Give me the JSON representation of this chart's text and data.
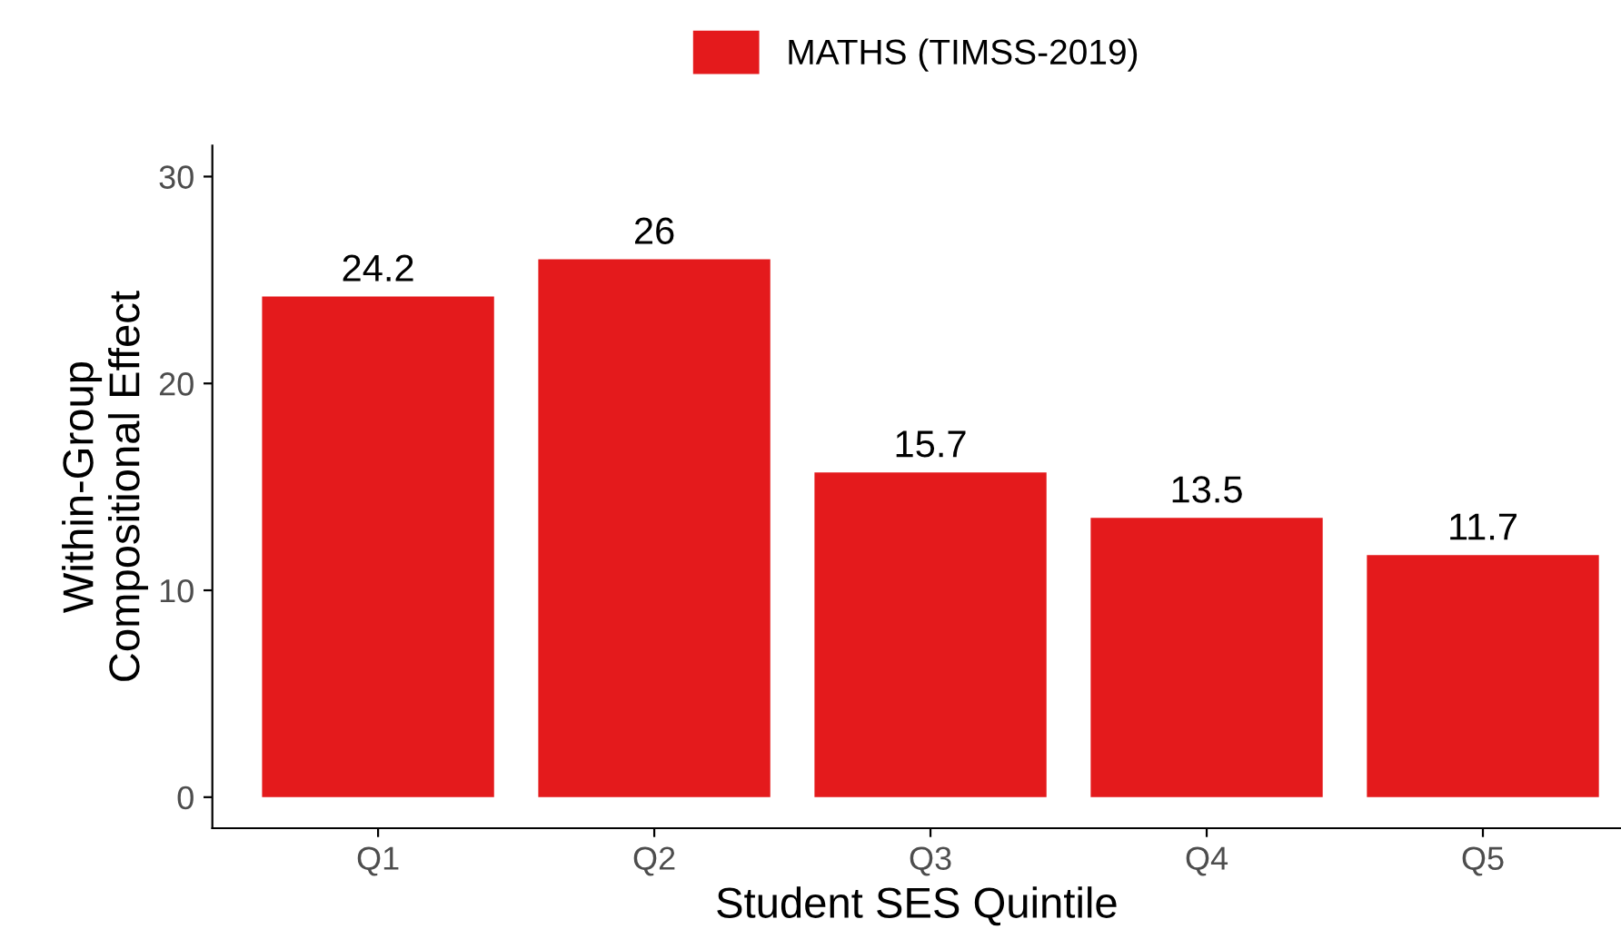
{
  "chart_data": {
    "type": "bar",
    "xlabel": "Student SES Quintile",
    "ylabel": "Within-Group\nCompositional Effect",
    "categories": [
      "Q1",
      "Q2",
      "Q3",
      "Q4",
      "Q5"
    ],
    "series": [
      {
        "name": "MATHS (TIMSS-2019)",
        "color": "#e41a1c",
        "values": [
          24.2,
          26,
          15.7,
          13.5,
          11.7
        ]
      }
    ],
    "ylim": [
      -1.5,
      31.5
    ],
    "yticks": [
      0,
      10,
      20,
      30
    ],
    "data_labels": true,
    "legend": "top",
    "grid": false
  }
}
